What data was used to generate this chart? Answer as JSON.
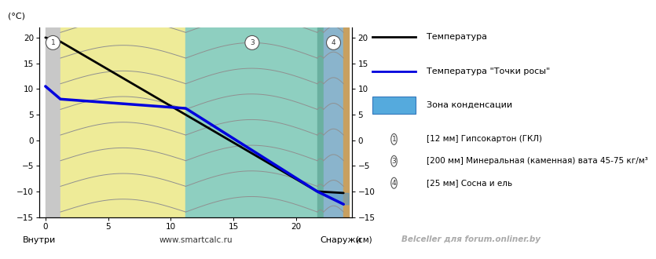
{
  "title_yaxis": "(°C)",
  "xlabel_left": "Внутри",
  "xlabel_center": "www.smartcalc.ru",
  "xlabel_right": "Снаружи",
  "xlabel_units": "(см)",
  "watermark": "Belceller для forum.onliner.by",
  "ylim": [
    -15,
    22
  ],
  "xlim": [
    -0.5,
    24.5
  ],
  "yticks": [
    -15,
    -10,
    -5,
    0,
    5,
    10,
    15,
    20
  ],
  "xticks": [
    0,
    5,
    10,
    15,
    20
  ],
  "layer_gypsum": {
    "x_start": 0.0,
    "x_end": 1.2,
    "color": "#c8c8c8"
  },
  "layer_wool": {
    "x_start": 1.2,
    "x_end": 11.2,
    "color": "#eeeb98"
  },
  "layer_mineral": {
    "x_start": 11.2,
    "x_end": 21.7,
    "color": "#8ecfc0"
  },
  "layer_wood_thin": {
    "x_start": 21.7,
    "x_end": 22.2,
    "color": "#6ab0a0"
  },
  "layer_wood": {
    "x_start": 22.2,
    "x_end": 23.8,
    "color": "#8ab4cc"
  },
  "layer_wood_edge": {
    "x_start": 23.8,
    "x_end": 24.2,
    "color": "#c8a060"
  },
  "temp_line": {
    "x": [
      0.0,
      1.2,
      21.7,
      23.8
    ],
    "y": [
      20.0,
      19.2,
      -10.0,
      -10.3
    ],
    "color": "#000000",
    "linewidth": 2.0
  },
  "dew_line": {
    "x": [
      0.0,
      1.2,
      11.2,
      21.7,
      23.8
    ],
    "y": [
      10.5,
      8.0,
      6.2,
      -10.0,
      -12.5
    ],
    "color": "#0000dd",
    "linewidth": 2.5
  },
  "condensation_color": "#5599cc",
  "condensation_alpha": 0.55,
  "isoline_color": "#909090",
  "isoline_linewidth": 0.7,
  "circle_color_bg": "#ffffff",
  "circle_edge_color": "#555555",
  "legend_line1_color": "#000000",
  "legend_line1_label": "Температура",
  "legend_line2_color": "#0000dd",
  "legend_line2_label": "Температура \"Точки росы\"",
  "legend_patch_color": "#55aadd",
  "legend_patch_label": "Зона конденсации",
  "layer_legend": [
    {
      "num": "1",
      "text": "[12 мм] Гипсокартон (ГКЛ)"
    },
    {
      "num": "3",
      "text": "[200 мм] Минеральная (каменная) вата 45-75 кг/м³"
    },
    {
      "num": "4",
      "text": "[25 мм] Сосна и ель"
    }
  ],
  "bg_color": "#ffffff"
}
